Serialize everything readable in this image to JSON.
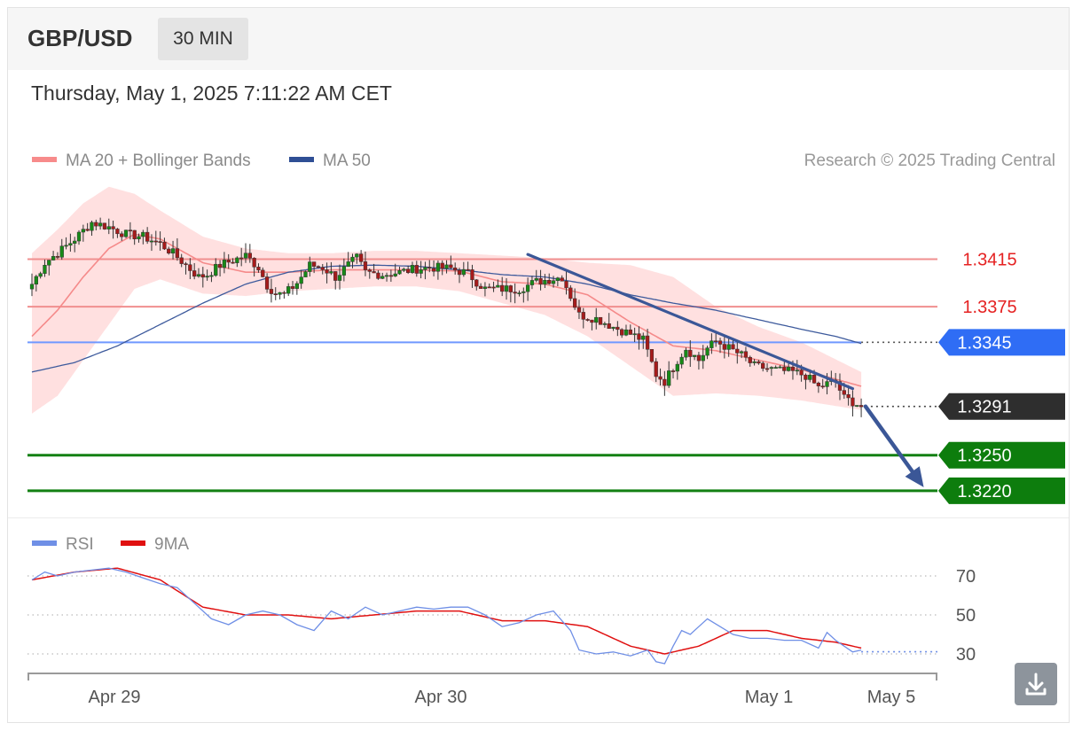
{
  "header": {
    "symbol": "GBP/USD",
    "timeframe": "30 MIN",
    "datetime": "Thursday, May 1, 2025 7:11:22 AM CET"
  },
  "legend": {
    "items": [
      {
        "label": "MA 20 + Bollinger Bands",
        "color": "#f78b8b"
      },
      {
        "label": "MA 50",
        "color": "#2f4f95"
      }
    ],
    "credit": "Research © 2025 Trading Central"
  },
  "rsi_legend": {
    "items": [
      {
        "label": "RSI",
        "color": "#6f8fe6"
      },
      {
        "label": "9MA",
        "color": "#e01010"
      }
    ]
  },
  "colors": {
    "resistance": "#f08f8f",
    "resistance_text": "#e52222",
    "pivot": "#6f98ff",
    "pivot_tag": "#2f6df5",
    "support": "#138013",
    "support_tag": "#0d7d0d",
    "current_tag": "#2e2e2e",
    "trend": "#3b5797",
    "candle_up": "#178a17",
    "candle_down": "#a61b1b"
  },
  "chart_data": [
    {
      "type": "candlestick",
      "x_ticks": [
        "Apr 29",
        "Apr 30",
        "May 1",
        "May 5"
      ],
      "ylim": [
        1.3208,
        1.3484
      ],
      "levels": [
        {
          "value": 1.3415,
          "label": "1.3415",
          "kind": "resistance"
        },
        {
          "value": 1.3375,
          "label": "1.3375",
          "kind": "resistance"
        },
        {
          "value": 1.3345,
          "label": "1.3345",
          "kind": "pivot"
        },
        {
          "value": 1.3291,
          "label": "1.3291",
          "kind": "current"
        },
        {
          "value": 1.325,
          "label": "1.3250",
          "kind": "support"
        },
        {
          "value": 1.322,
          "label": "1.3220",
          "kind": "support"
        }
      ],
      "close_anchors": [
        [
          0,
          1.3394
        ],
        [
          3,
          1.3412
        ],
        [
          6,
          1.342
        ],
        [
          10,
          1.3432
        ],
        [
          14,
          1.3446
        ],
        [
          18,
          1.3442
        ],
        [
          22,
          1.3436
        ],
        [
          26,
          1.3434
        ],
        [
          30,
          1.3428
        ],
        [
          33,
          1.342
        ],
        [
          36,
          1.341
        ],
        [
          39,
          1.34
        ],
        [
          41,
          1.3402
        ],
        [
          44,
          1.341
        ],
        [
          47,
          1.3414
        ],
        [
          50,
          1.3418
        ],
        [
          53,
          1.3408
        ],
        [
          55,
          1.3393
        ],
        [
          57,
          1.3386
        ],
        [
          59,
          1.3385
        ],
        [
          62,
          1.3395
        ],
        [
          65,
          1.341
        ],
        [
          68,
          1.3408
        ],
        [
          71,
          1.34
        ],
        [
          74,
          1.341
        ],
        [
          76,
          1.3416
        ],
        [
          78,
          1.3404
        ],
        [
          82,
          1.3402
        ],
        [
          86,
          1.3404
        ],
        [
          90,
          1.3407
        ],
        [
          94,
          1.3408
        ],
        [
          98,
          1.3407
        ],
        [
          102,
          1.3403
        ],
        [
          104,
          1.3396
        ],
        [
          106,
          1.339
        ],
        [
          110,
          1.339
        ],
        [
          114,
          1.339
        ],
        [
          118,
          1.3396
        ],
        [
          121,
          1.3398
        ],
        [
          124,
          1.34
        ],
        [
          126,
          1.3384
        ],
        [
          128,
          1.3368
        ],
        [
          132,
          1.3365
        ],
        [
          136,
          1.3358
        ],
        [
          140,
          1.3352
        ],
        [
          143,
          1.3347
        ],
        [
          146,
          1.3318
        ],
        [
          148,
          1.3312
        ],
        [
          151,
          1.333
        ],
        [
          153,
          1.334
        ],
        [
          156,
          1.333
        ],
        [
          158,
          1.334
        ],
        [
          160,
          1.3346
        ],
        [
          163,
          1.334
        ],
        [
          166,
          1.3334
        ],
        [
          169,
          1.3325
        ],
        [
          172,
          1.3323
        ],
        [
          175,
          1.3321
        ],
        [
          178,
          1.332
        ],
        [
          181,
          1.3317
        ],
        [
          184,
          1.3307
        ],
        [
          186,
          1.331
        ],
        [
          188,
          1.3312
        ],
        [
          190,
          1.3298
        ],
        [
          192,
          1.3295
        ],
        [
          194,
          1.3291
        ]
      ],
      "ma20_anchors": [
        [
          0,
          1.335
        ],
        [
          6,
          1.3372
        ],
        [
          12,
          1.34
        ],
        [
          18,
          1.3424
        ],
        [
          24,
          1.3436
        ],
        [
          30,
          1.3432
        ],
        [
          40,
          1.3412
        ],
        [
          50,
          1.3404
        ],
        [
          60,
          1.3404
        ],
        [
          70,
          1.3406
        ],
        [
          80,
          1.3406
        ],
        [
          90,
          1.3406
        ],
        [
          100,
          1.3405
        ],
        [
          110,
          1.3396
        ],
        [
          120,
          1.3394
        ],
        [
          130,
          1.3385
        ],
        [
          140,
          1.3362
        ],
        [
          150,
          1.3342
        ],
        [
          160,
          1.3338
        ],
        [
          170,
          1.333
        ],
        [
          180,
          1.3322
        ],
        [
          194,
          1.3308
        ]
      ],
      "ma50_anchors": [
        [
          0,
          1.332
        ],
        [
          10,
          1.3328
        ],
        [
          20,
          1.3342
        ],
        [
          30,
          1.336
        ],
        [
          40,
          1.3378
        ],
        [
          50,
          1.3394
        ],
        [
          60,
          1.3404
        ],
        [
          70,
          1.3409
        ],
        [
          80,
          1.341
        ],
        [
          90,
          1.3409
        ],
        [
          100,
          1.3406
        ],
        [
          110,
          1.3402
        ],
        [
          120,
          1.34
        ],
        [
          130,
          1.3394
        ],
        [
          140,
          1.3385
        ],
        [
          150,
          1.3378
        ],
        [
          160,
          1.3372
        ],
        [
          170,
          1.3364
        ],
        [
          180,
          1.3356
        ],
        [
          188,
          1.335
        ],
        [
          194,
          1.3344
        ]
      ],
      "band_upper_anchors": [
        [
          0,
          1.342
        ],
        [
          6,
          1.344
        ],
        [
          12,
          1.3462
        ],
        [
          18,
          1.3476
        ],
        [
          24,
          1.347
        ],
        [
          30,
          1.3456
        ],
        [
          40,
          1.3434
        ],
        [
          50,
          1.3424
        ],
        [
          60,
          1.342
        ],
        [
          70,
          1.342
        ],
        [
          80,
          1.3422
        ],
        [
          90,
          1.3422
        ],
        [
          100,
          1.342
        ],
        [
          110,
          1.3418
        ],
        [
          120,
          1.3416
        ],
        [
          130,
          1.3412
        ],
        [
          140,
          1.341
        ],
        [
          150,
          1.34
        ],
        [
          160,
          1.3375
        ],
        [
          170,
          1.3358
        ],
        [
          180,
          1.3345
        ],
        [
          194,
          1.332
        ]
      ],
      "band_lower_anchors": [
        [
          0,
          1.3285
        ],
        [
          6,
          1.33
        ],
        [
          12,
          1.333
        ],
        [
          18,
          1.336
        ],
        [
          24,
          1.339
        ],
        [
          30,
          1.3398
        ],
        [
          40,
          1.3386
        ],
        [
          50,
          1.3384
        ],
        [
          60,
          1.3388
        ],
        [
          70,
          1.339
        ],
        [
          80,
          1.3392
        ],
        [
          90,
          1.3392
        ],
        [
          100,
          1.3388
        ],
        [
          110,
          1.3378
        ],
        [
          120,
          1.3368
        ],
        [
          130,
          1.335
        ],
        [
          140,
          1.3325
        ],
        [
          150,
          1.33
        ],
        [
          160,
          1.3302
        ],
        [
          170,
          1.33
        ],
        [
          180,
          1.3296
        ],
        [
          194,
          1.3288
        ]
      ],
      "trendline": {
        "start": [
          116,
          1.3419
        ],
        "end": [
          192,
          1.3306
        ]
      },
      "projection": {
        "from": [
          195,
          1.3291
        ],
        "to": [
          208,
          1.322
        ]
      }
    },
    {
      "type": "line",
      "title": "RSI",
      "ylim": [
        20,
        80
      ],
      "y_ticks": [
        70,
        50,
        30
      ],
      "rsi_anchors": [
        [
          0,
          68
        ],
        [
          3,
          72
        ],
        [
          6,
          70
        ],
        [
          10,
          72
        ],
        [
          14,
          73
        ],
        [
          18,
          74
        ],
        [
          22,
          72
        ],
        [
          26,
          69
        ],
        [
          30,
          66
        ],
        [
          34,
          64
        ],
        [
          38,
          56
        ],
        [
          42,
          48
        ],
        [
          46,
          45
        ],
        [
          50,
          50
        ],
        [
          54,
          52
        ],
        [
          58,
          50
        ],
        [
          62,
          45
        ],
        [
          66,
          42
        ],
        [
          70,
          52
        ],
        [
          74,
          48
        ],
        [
          78,
          54
        ],
        [
          82,
          50
        ],
        [
          86,
          52
        ],
        [
          90,
          54
        ],
        [
          94,
          53
        ],
        [
          98,
          54
        ],
        [
          102,
          54
        ],
        [
          106,
          50
        ],
        [
          110,
          44
        ],
        [
          114,
          46
        ],
        [
          118,
          50
        ],
        [
          122,
          52
        ],
        [
          126,
          42
        ],
        [
          128,
          32
        ],
        [
          132,
          30
        ],
        [
          136,
          31
        ],
        [
          140,
          29
        ],
        [
          144,
          32
        ],
        [
          146,
          26
        ],
        [
          148,
          25
        ],
        [
          150,
          34
        ],
        [
          152,
          42
        ],
        [
          154,
          40
        ],
        [
          156,
          44
        ],
        [
          158,
          48
        ],
        [
          161,
          44
        ],
        [
          164,
          40
        ],
        [
          168,
          38
        ],
        [
          172,
          38
        ],
        [
          176,
          37
        ],
        [
          180,
          37
        ],
        [
          184,
          33
        ],
        [
          186,
          41
        ],
        [
          188,
          37
        ],
        [
          192,
          31
        ],
        [
          194,
          32
        ]
      ],
      "ma9_anchors": [
        [
          0,
          68
        ],
        [
          10,
          72
        ],
        [
          20,
          74
        ],
        [
          30,
          68
        ],
        [
          40,
          54
        ],
        [
          50,
          50
        ],
        [
          60,
          50
        ],
        [
          70,
          48
        ],
        [
          80,
          50
        ],
        [
          90,
          52
        ],
        [
          100,
          52
        ],
        [
          110,
          47
        ],
        [
          120,
          47
        ],
        [
          130,
          44
        ],
        [
          140,
          34
        ],
        [
          148,
          30
        ],
        [
          156,
          34
        ],
        [
          164,
          42
        ],
        [
          172,
          42
        ],
        [
          180,
          38
        ],
        [
          188,
          36
        ],
        [
          194,
          33
        ]
      ]
    }
  ]
}
